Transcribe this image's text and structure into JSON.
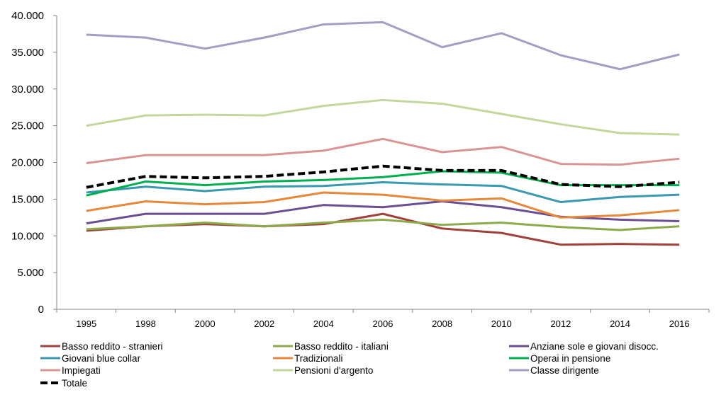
{
  "chart_data": {
    "type": "line",
    "title": "",
    "xlabel": "",
    "ylabel": "",
    "categories": [
      "1995",
      "1998",
      "2000",
      "2002",
      "2004",
      "2006",
      "2008",
      "2010",
      "2012",
      "2014",
      "2016"
    ],
    "ylim": [
      0,
      40000
    ],
    "yticks": [
      0,
      5000,
      10000,
      15000,
      20000,
      25000,
      30000,
      35000,
      40000
    ],
    "ytick_labels": [
      "0",
      "5.000",
      "10.000",
      "15.000",
      "20.000",
      "25.000",
      "30.000",
      "35.000",
      "40.000"
    ],
    "grid": false,
    "legend_position": "bottom",
    "series": [
      {
        "name": "Basso reddito - stranieri",
        "color": "#A0413C",
        "dash": false,
        "values": [
          10700,
          11300,
          11600,
          11300,
          11600,
          13000,
          11000,
          10400,
          8800,
          8900,
          8800
        ]
      },
      {
        "name": "Basso reddito - italiani",
        "color": "#8BAA4A",
        "dash": false,
        "values": [
          10900,
          11300,
          11800,
          11300,
          11800,
          12200,
          11500,
          11800,
          11200,
          10800,
          11300
        ]
      },
      {
        "name": "Anziane sole e giovani disocc.",
        "color": "#6A4E91",
        "dash": false,
        "values": [
          11700,
          13000,
          13000,
          13000,
          14200,
          13900,
          14700,
          13900,
          12600,
          12200,
          12000
        ]
      },
      {
        "name": "Giovani blue collar",
        "color": "#3A98AF",
        "dash": false,
        "values": [
          15900,
          16700,
          16100,
          16700,
          16800,
          17300,
          17000,
          16800,
          14600,
          15300,
          15600
        ]
      },
      {
        "name": "Tradizionali",
        "color": "#E6883A",
        "dash": false,
        "values": [
          13400,
          14700,
          14300,
          14600,
          15900,
          15600,
          14800,
          15100,
          12500,
          12800,
          13500
        ]
      },
      {
        "name": "Operai in pensione",
        "color": "#00B050",
        "dash": false,
        "values": [
          15500,
          17400,
          16900,
          17400,
          17600,
          18000,
          18800,
          18600,
          16900,
          16900,
          16900
        ]
      },
      {
        "name": "Impiegati",
        "color": "#D99594",
        "dash": false,
        "values": [
          19900,
          21000,
          21000,
          21000,
          21600,
          23200,
          21400,
          22100,
          19800,
          19700,
          20500
        ]
      },
      {
        "name": "Pensioni d'argento",
        "color": "#C3D69B",
        "dash": false,
        "values": [
          25000,
          26400,
          26500,
          26400,
          27700,
          28500,
          28000,
          26600,
          25200,
          24000,
          23800
        ]
      },
      {
        "name": "Classe dirigente",
        "color": "#A69CC4",
        "dash": false,
        "values": [
          37400,
          37000,
          35500,
          37000,
          38800,
          39100,
          35700,
          37600,
          34600,
          32700,
          34700
        ]
      },
      {
        "name": "Totale",
        "color": "#000000",
        "dash": true,
        "values": [
          16600,
          18100,
          17900,
          18100,
          18700,
          19500,
          18900,
          18900,
          17000,
          16700,
          17300
        ]
      }
    ]
  }
}
